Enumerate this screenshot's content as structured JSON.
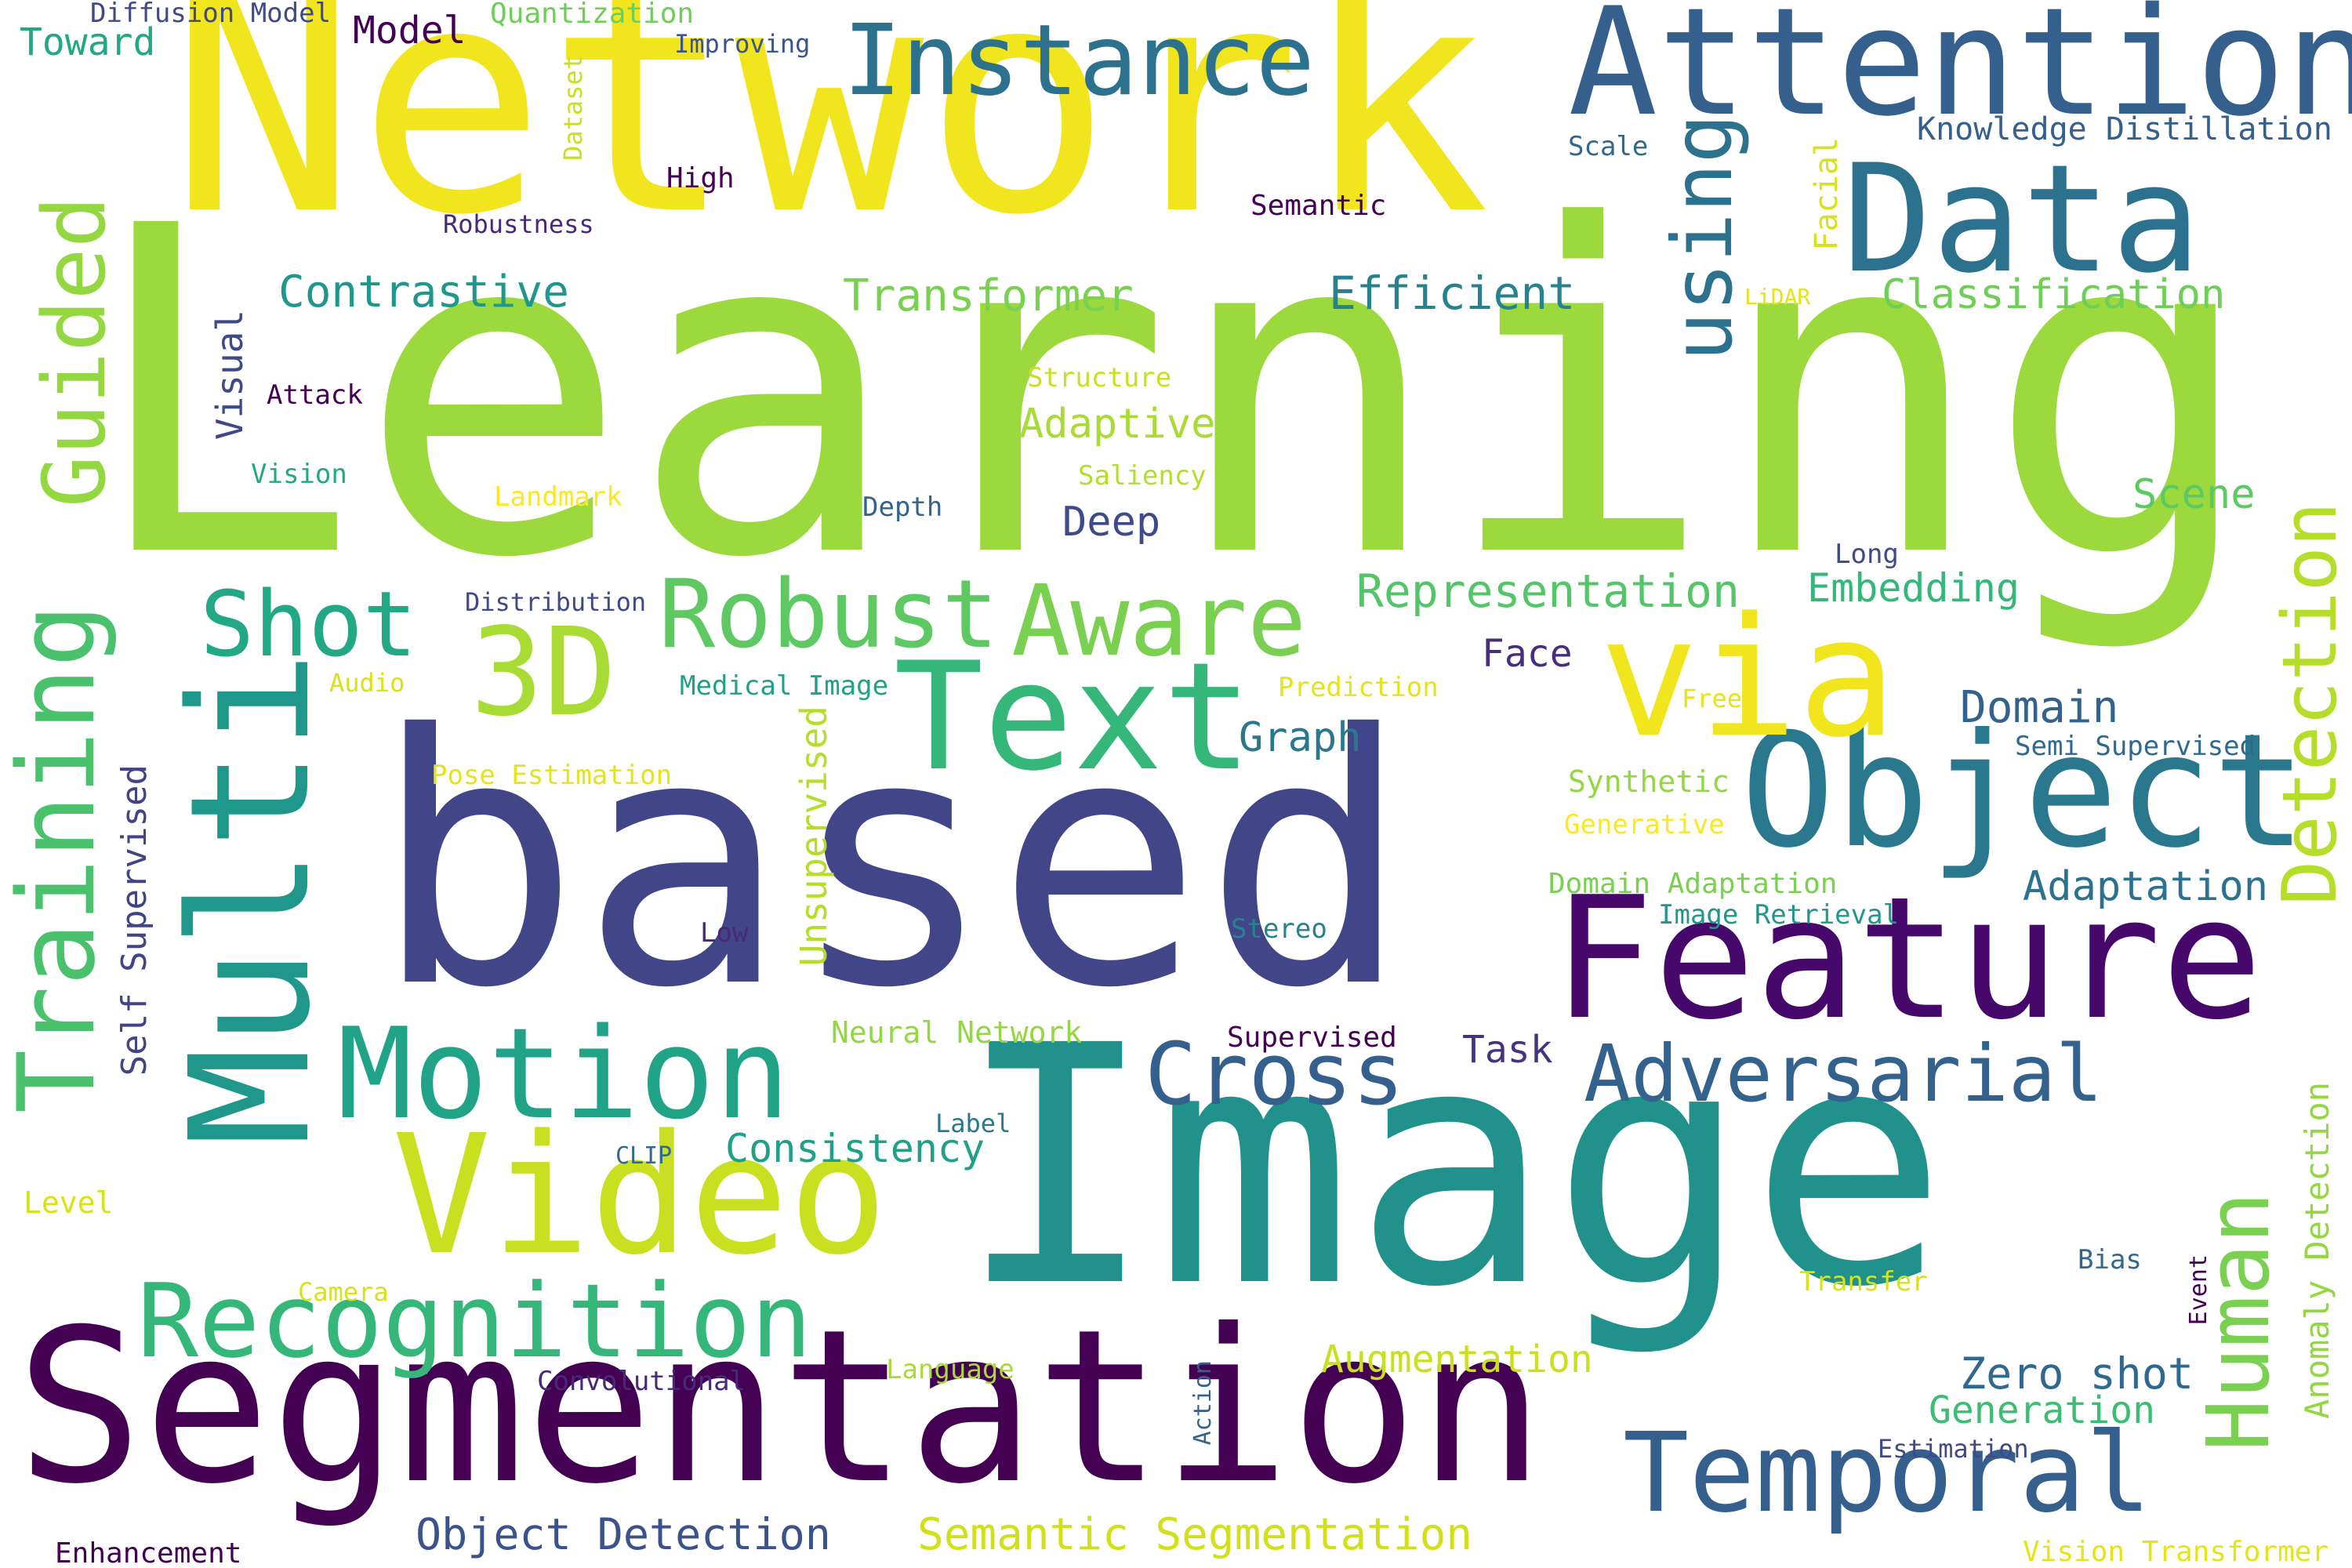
{
  "colors": {
    "background": "#ffffff",
    "palette": [
      "#440154",
      "#482979",
      "#3e4a89",
      "#31688e",
      "#26828e",
      "#1f9e89",
      "#35b779",
      "#6ece58",
      "#b5de2b",
      "#fde725"
    ]
  },
  "words": [
    {
      "text": "Learning",
      "color": "#9bd93c"
    },
    {
      "text": "Network",
      "color": "#f1e51d"
    },
    {
      "text": "based",
      "color": "#404688"
    },
    {
      "text": "Image",
      "color": "#21918c"
    },
    {
      "text": "Segmentation",
      "color": "#440154"
    },
    {
      "text": "Feature",
      "color": "#46086b"
    },
    {
      "text": "Multi",
      "color": "#1f988b"
    },
    {
      "text": "Object",
      "color": "#2a788e"
    },
    {
      "text": "Video",
      "color": "#c8e020"
    },
    {
      "text": "Text",
      "color": "#35b779"
    },
    {
      "text": "Data",
      "color": "#2c728e"
    },
    {
      "text": "Attention",
      "color": "#355f8d"
    },
    {
      "text": "via",
      "color": "#f1e51d"
    },
    {
      "text": "Motion",
      "color": "#20a386"
    },
    {
      "text": "Training",
      "color": "#4ac16d"
    },
    {
      "text": "Temporal",
      "color": "#355f8d"
    },
    {
      "text": "Recognition",
      "color": "#35b779"
    },
    {
      "text": "Instance",
      "color": "#2c728e"
    },
    {
      "text": "3D",
      "color": "#a8db34"
    },
    {
      "text": "Aware",
      "color": "#7ad151"
    },
    {
      "text": "Robust",
      "color": "#5ec962"
    },
    {
      "text": "Cross",
      "color": "#355f8d"
    },
    {
      "text": "Adversarial",
      "color": "#33638d"
    },
    {
      "text": "Human",
      "color": "#7ad151"
    },
    {
      "text": "Detection",
      "color": "#b5de2b"
    },
    {
      "text": "Guided",
      "color": "#93d741"
    },
    {
      "text": "using",
      "color": "#2c728e"
    },
    {
      "text": "Shot",
      "color": "#22a884"
    },
    {
      "text": "Object Detection",
      "color": "#3b528b"
    },
    {
      "text": "Semantic Segmentation",
      "color": "#d0e11c"
    },
    {
      "text": "Zero shot",
      "color": "#31688e"
    },
    {
      "text": "Generation",
      "color": "#3dbc74"
    },
    {
      "text": "Augmentation",
      "color": "#c8e020"
    },
    {
      "text": "Contrastive",
      "color": "#1f988b"
    },
    {
      "text": "Transformer",
      "color": "#7ad151"
    },
    {
      "text": "Efficient",
      "color": "#26828e"
    },
    {
      "text": "Classification",
      "color": "#6ece58"
    },
    {
      "text": "Representation",
      "color": "#54c568"
    },
    {
      "text": "Embedding",
      "color": "#35b779"
    },
    {
      "text": "Domain",
      "color": "#33638d"
    },
    {
      "text": "Adaptation",
      "color": "#2c728e"
    },
    {
      "text": "Consistency",
      "color": "#1fa187"
    },
    {
      "text": "Adaptive",
      "color": "#a8db34"
    },
    {
      "text": "Deep",
      "color": "#3e4a89"
    },
    {
      "text": "Graph",
      "color": "#2a788e"
    },
    {
      "text": "Scene",
      "color": "#5ec962"
    },
    {
      "text": "Face",
      "color": "#472d7b"
    },
    {
      "text": "Task",
      "color": "#46337e"
    },
    {
      "text": "Unsupervised",
      "color": "#b5de2b"
    },
    {
      "text": "Self Supervised",
      "color": "#414487"
    },
    {
      "text": "Visual",
      "color": "#3e4989"
    },
    {
      "text": "Anomaly Detection",
      "color": "#93d741"
    },
    {
      "text": "Toward",
      "color": "#22a884"
    },
    {
      "text": "Model",
      "color": "#440154"
    },
    {
      "text": "Diffusion Model",
      "color": "#3e4a89"
    },
    {
      "text": "Quantization",
      "color": "#6ece58"
    },
    {
      "text": "Improving",
      "color": "#3b528b"
    },
    {
      "text": "Knowledge Distillation",
      "color": "#355f8d"
    },
    {
      "text": "Scale",
      "color": "#31688e"
    },
    {
      "text": "High",
      "color": "#440154"
    },
    {
      "text": "Semantic",
      "color": "#440154"
    },
    {
      "text": "Robustness",
      "color": "#482878"
    },
    {
      "text": "Dataset",
      "color": "#c8e020"
    },
    {
      "text": "Facial",
      "color": "#d8e219"
    },
    {
      "text": "LiDAR",
      "color": "#e5e419"
    },
    {
      "text": "Structure",
      "color": "#c8e020"
    },
    {
      "text": "Attack",
      "color": "#440154"
    },
    {
      "text": "Vision",
      "color": "#22a884"
    },
    {
      "text": "Landmark",
      "color": "#fde725"
    },
    {
      "text": "Saliency",
      "color": "#b5de2b"
    },
    {
      "text": "Depth",
      "color": "#33638d"
    },
    {
      "text": "Long",
      "color": "#3e4a89"
    },
    {
      "text": "Distribution",
      "color": "#3e4a89"
    },
    {
      "text": "Audio",
      "color": "#d8e219"
    },
    {
      "text": "Medical Image",
      "color": "#1fa187"
    },
    {
      "text": "Prediction",
      "color": "#e5e419"
    },
    {
      "text": "Free",
      "color": "#e5e419"
    },
    {
      "text": "Semi Supervised",
      "color": "#31688e"
    },
    {
      "text": "Pose Estimation",
      "color": "#e5e419"
    },
    {
      "text": "Synthetic",
      "color": "#93d741"
    },
    {
      "text": "Generative",
      "color": "#fde725"
    },
    {
      "text": "Domain Adaptation",
      "color": "#7ad151"
    },
    {
      "text": "Image Retrieval",
      "color": "#1f988b"
    },
    {
      "text": "Low",
      "color": "#482878"
    },
    {
      "text": "Stereo",
      "color": "#26828e"
    },
    {
      "text": "Neural Network",
      "color": "#93d741"
    },
    {
      "text": "Supervised",
      "color": "#440154"
    },
    {
      "text": "Label",
      "color": "#2a788e"
    },
    {
      "text": "CLIP",
      "color": "#31688e"
    },
    {
      "text": "Level",
      "color": "#d8e219"
    },
    {
      "text": "Camera",
      "color": "#d8e219"
    },
    {
      "text": "Convolutional",
      "color": "#482878"
    },
    {
      "text": "Language",
      "color": "#a8db34"
    },
    {
      "text": "Action",
      "color": "#33638d"
    },
    {
      "text": "Bias",
      "color": "#31688e"
    },
    {
      "text": "Transfer",
      "color": "#d8e219"
    },
    {
      "text": "Event",
      "color": "#440154"
    },
    {
      "text": "Estimation",
      "color": "#3e4a89"
    },
    {
      "text": "Enhancement",
      "color": "#440154"
    },
    {
      "text": "Vision Transformer",
      "color": "#e5e419"
    }
  ]
}
